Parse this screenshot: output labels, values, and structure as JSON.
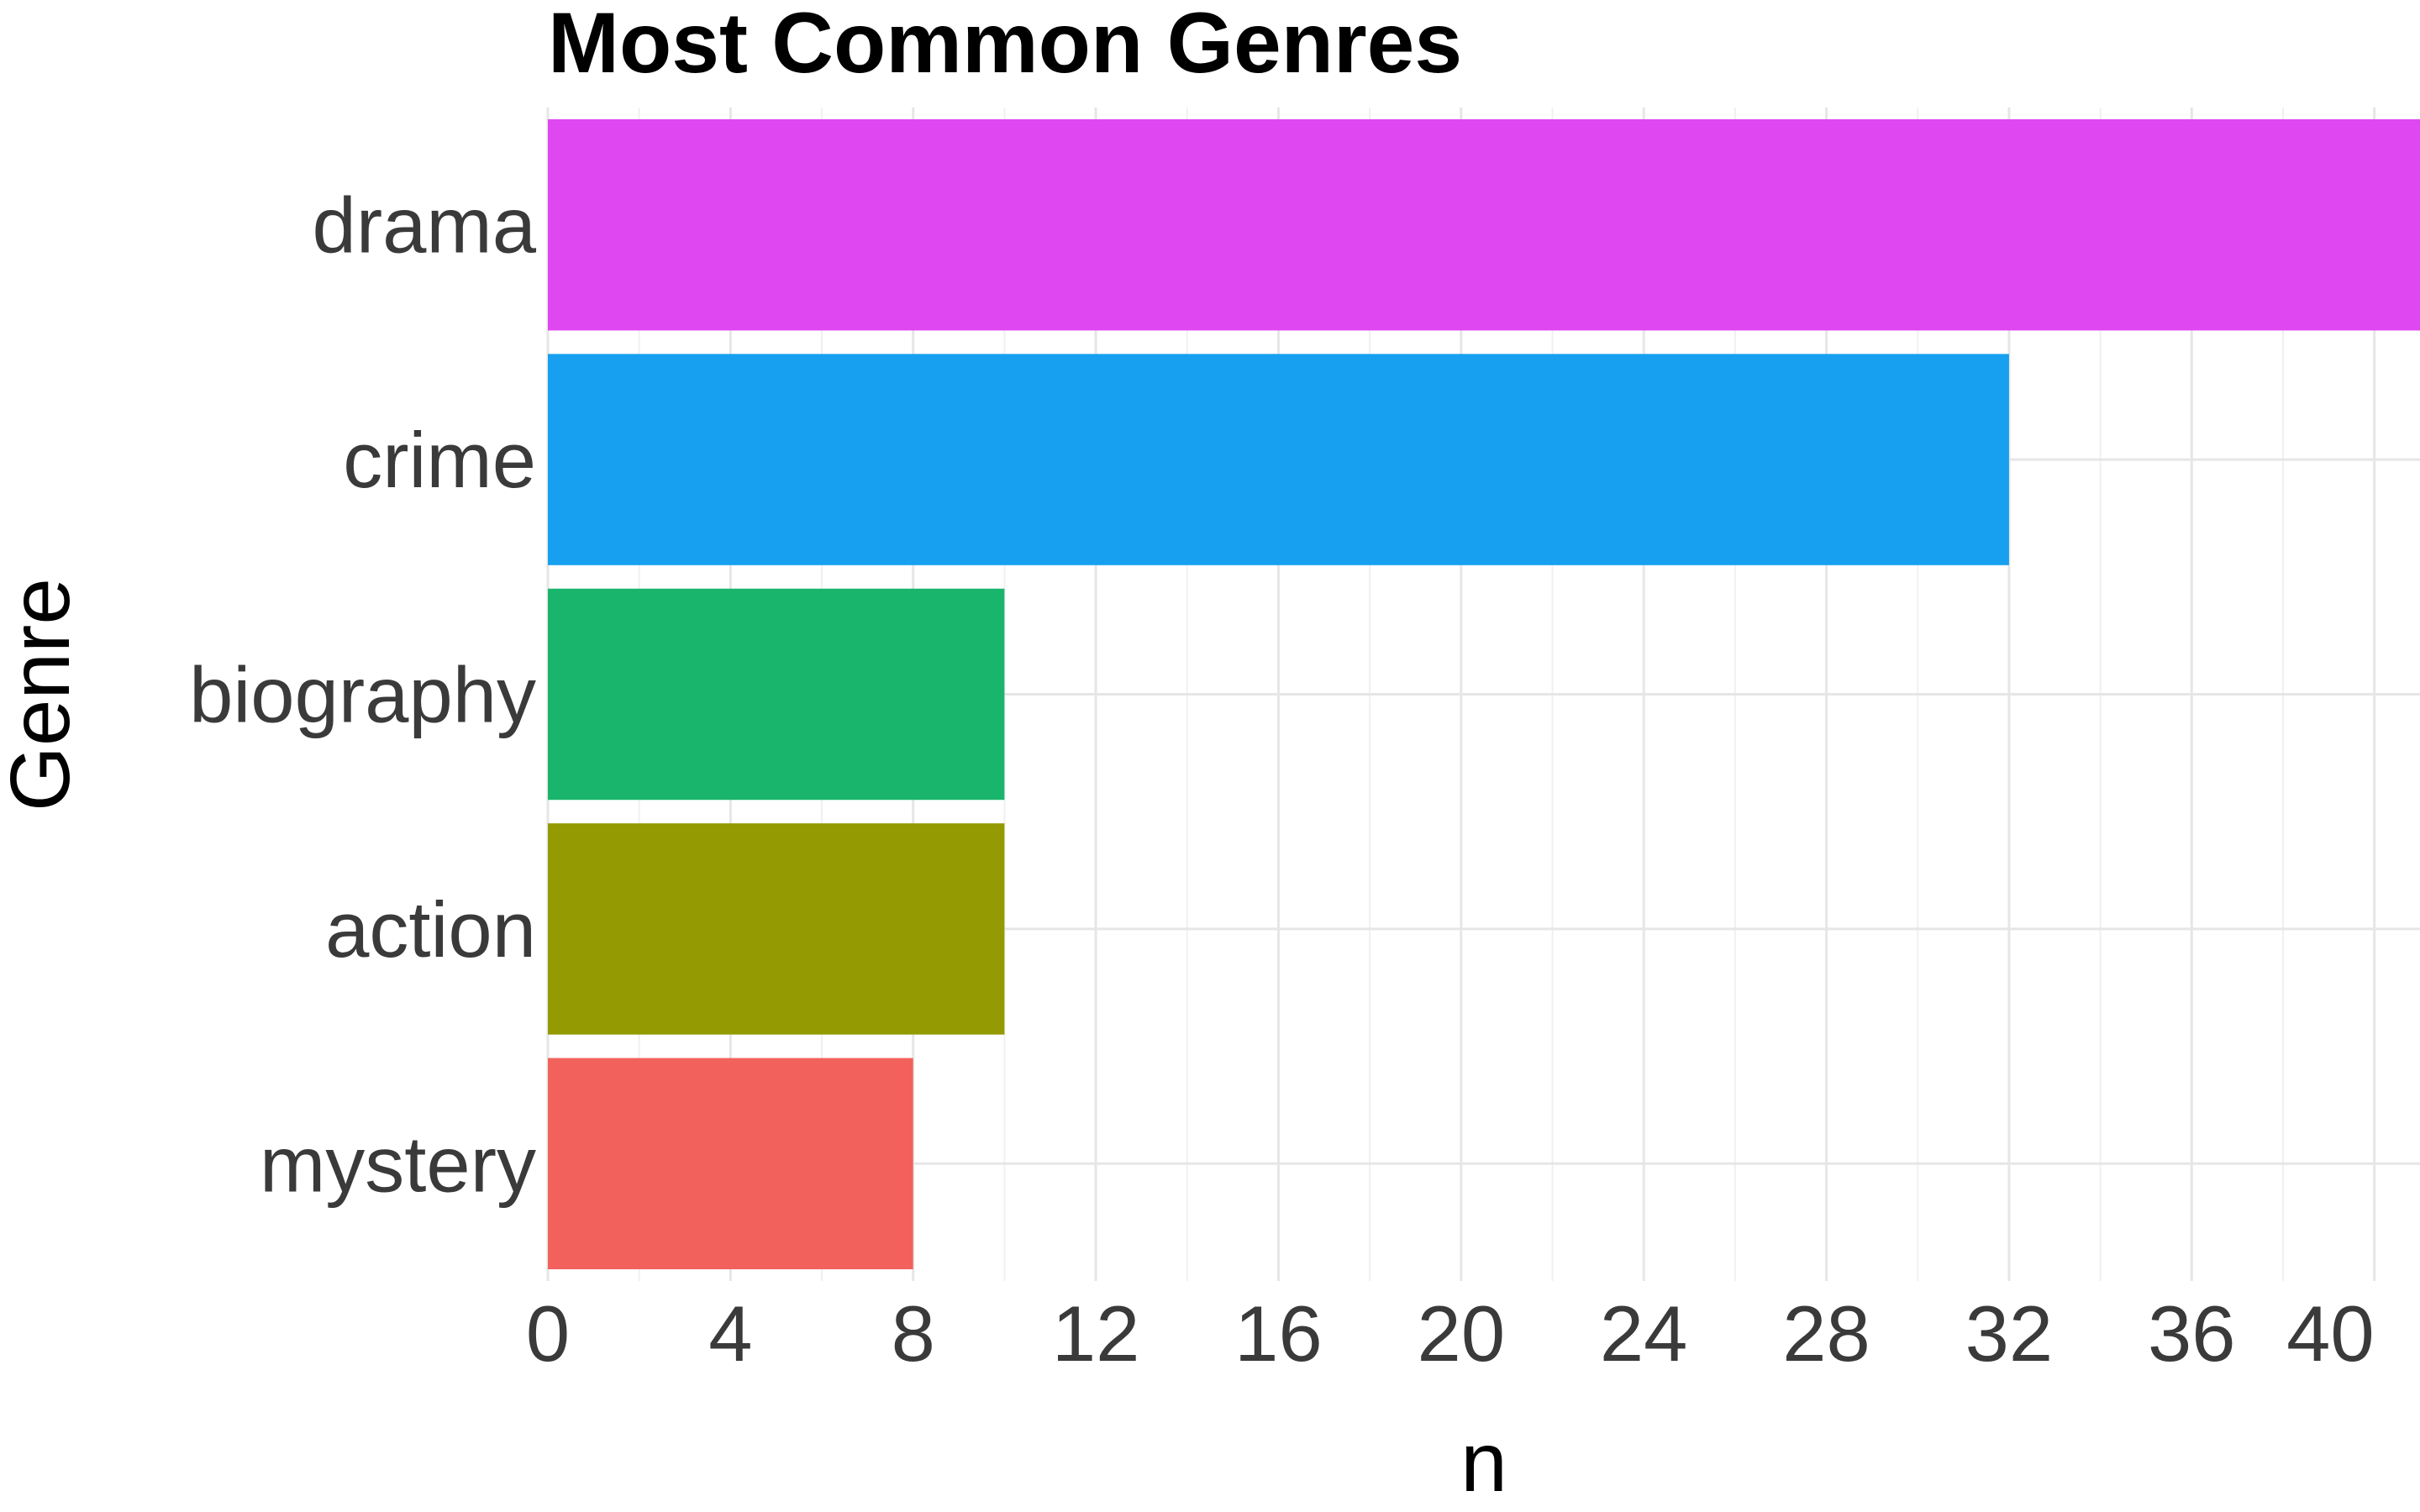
{
  "chart_data": {
    "type": "bar",
    "orientation": "horizontal",
    "title": "Most Common Genres",
    "xlabel": "n",
    "ylabel": "Genre",
    "categories": [
      "drama",
      "crime",
      "biography",
      "action",
      "mystery"
    ],
    "values": [
      41,
      32,
      10,
      10,
      8
    ],
    "colors": [
      "#df47f0",
      "#17a0f0",
      "#1ab56c",
      "#939a02",
      "#f2615c"
    ],
    "xlim": [
      0,
      41
    ],
    "xticks": [
      0,
      4,
      8,
      12,
      16,
      20,
      24,
      28,
      32,
      36,
      40
    ],
    "xtick_labels": [
      "0",
      "4",
      "8",
      "12",
      "16",
      "20",
      "24",
      "28",
      "32",
      "36",
      "40"
    ],
    "grid": true,
    "legend": false
  }
}
